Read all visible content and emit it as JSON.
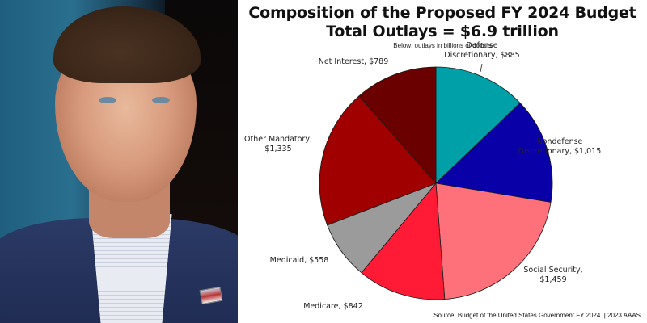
{
  "photo": {
    "description": "portrait photo of a man in a navy suit and checked shirt with a flag lapel pin, blue-teal background"
  },
  "chart_data": {
    "type": "pie",
    "title": "Composition of the Proposed FY 2024 Budget",
    "subtitle_line": "Total Outlays = $6.9 trillion",
    "note": "Below: outlays in billions of dollars",
    "source": "Source: Budget of the United States Government FY 2024. | 2023 AAAS",
    "units": "billions of dollars",
    "total": 6883,
    "start_angle": "12 o'clock, clockwise",
    "slices": [
      {
        "label": "Defense Discretionary",
        "value": 885,
        "color": "#00a0a8",
        "label_lines": [
          "Defense",
          "Discretionary, $885"
        ]
      },
      {
        "label": "Nondefense Discretionary",
        "value": 1015,
        "color": "#0a00a8",
        "label_lines": [
          "Nondefense",
          "Discretionary, $1,015"
        ]
      },
      {
        "label": "Social Security",
        "value": 1459,
        "color": "#ff717a",
        "label_lines": [
          "Social Security,",
          "$1,459"
        ]
      },
      {
        "label": "Medicare",
        "value": 842,
        "color": "#ff1a35",
        "label_lines": [
          "Medicare, $842"
        ]
      },
      {
        "label": "Medicaid",
        "value": 558,
        "color": "#9b9b9b",
        "label_lines": [
          "Medicaid, $558"
        ]
      },
      {
        "label": "Other Mandatory",
        "value": 1335,
        "color": "#a00000",
        "label_lines": [
          "Other Mandatory,",
          "$1,335"
        ]
      },
      {
        "label": "Net Interest",
        "value": 789,
        "color": "#6a0000",
        "label_lines": [
          "Net Interest, $789"
        ]
      }
    ]
  }
}
